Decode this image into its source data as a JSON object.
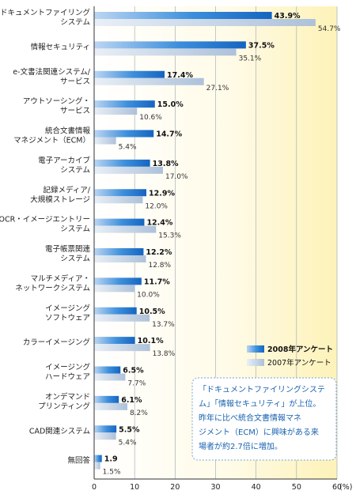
{
  "chart_data": {
    "type": "bar",
    "orientation": "horizontal",
    "categories": [
      [
        "ドキュメントファイリング",
        "システム"
      ],
      [
        "情報セキュリティ"
      ],
      [
        "e-文書法関連システム/",
        "サービス"
      ],
      [
        "アウトソーシング・",
        "サービス"
      ],
      [
        "統合文書情報",
        "マネジメント（ECM）"
      ],
      [
        "電子アーカイブ",
        "システム"
      ],
      [
        "記録メディア/",
        "大規模ストレージ"
      ],
      [
        "OCR・イメージエントリー",
        "システム"
      ],
      [
        "電子帳票関連",
        "システム"
      ],
      [
        "マルチメディア・",
        "ネットワークシステム"
      ],
      [
        "イメージング",
        "ソフトウェア"
      ],
      [
        "カラーイメージング"
      ],
      [
        "イメージング",
        "ハードウェア"
      ],
      [
        "オンデマンド",
        "プリンティング"
      ],
      [
        "CAD関連システム"
      ],
      [
        "無回答"
      ]
    ],
    "series": [
      {
        "name": "2008年アンケート",
        "color": "#2a7fd4",
        "values": [
          43.9,
          37.5,
          17.4,
          15.0,
          14.7,
          13.8,
          12.9,
          12.4,
          12.2,
          11.7,
          10.5,
          10.1,
          6.5,
          6.1,
          5.5,
          1.9
        ],
        "labels": [
          "43.9%",
          "37.5%",
          "17.4%",
          "15.0%",
          "14.7%",
          "13.8%",
          "12.9%",
          "12.4%",
          "12.2%",
          "11.7%",
          "10.5%",
          "10.1%",
          "6.5%",
          "6.1%",
          "5.5%",
          "1.9"
        ]
      },
      {
        "name": "2007年アンケート",
        "color": "#b9cbe0",
        "values": [
          54.7,
          35.1,
          27.1,
          10.6,
          5.4,
          17.0,
          12.0,
          15.3,
          12.8,
          10.0,
          13.7,
          13.8,
          7.7,
          8.2,
          5.4,
          1.5
        ],
        "labels": [
          "54.7%",
          "35.1%",
          "27.1%",
          "10.6%",
          "5.4%",
          "17.0%",
          "12.0%",
          "15.3%",
          "12.8%",
          "10.0%",
          "13.7%",
          "13.8%",
          "7.7%",
          "8.2%",
          "5.4%",
          "1.5%"
        ]
      }
    ],
    "xlim": [
      0,
      60
    ],
    "x_ticks": [
      "0",
      "10",
      "20",
      "30",
      "40",
      "50",
      "60"
    ],
    "x_unit": "(%)",
    "grid": true,
    "legend_position": "right-middle",
    "annotation": {
      "lines": [
        "「ドキュメントファイリングシステ",
        "ム」「情報セキュリティ」が上位。",
        "昨年に比べ統合文書情報マネ",
        "ジメント（ECM）に興味がある来",
        "場者が約2.7倍に増加。"
      ]
    }
  }
}
